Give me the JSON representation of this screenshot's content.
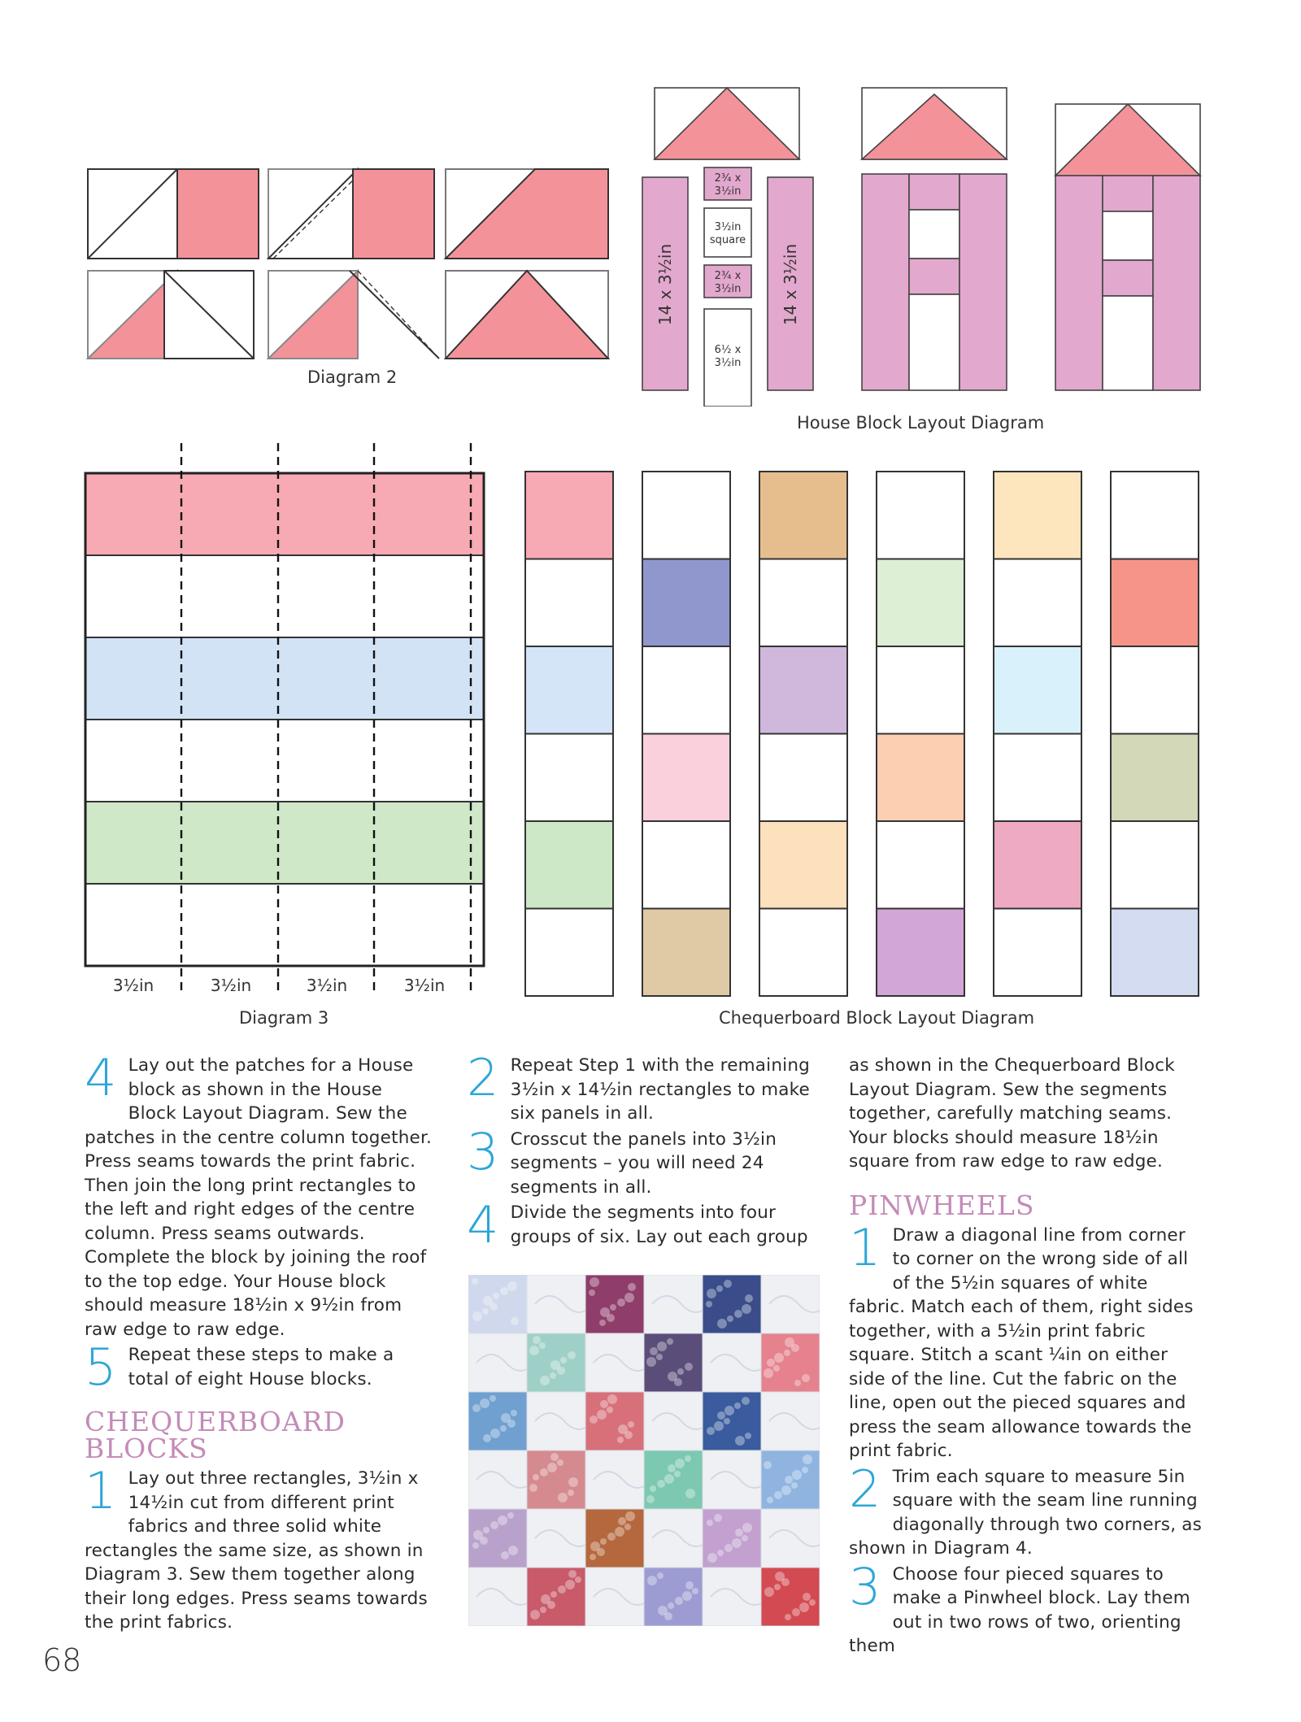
{
  "diagram2": {
    "caption": "Diagram 2"
  },
  "house_layout": {
    "caption": "House Block Layout Diagram",
    "labels": {
      "long_left": "14 x 3½in",
      "long_right": "14 x 3½in",
      "piece1_l1": "2¾ x",
      "piece1_l2": "3½in",
      "piece2_l1": "3½in",
      "piece2_l2": "square",
      "piece3_l1": "2¾ x",
      "piece3_l2": "3½in",
      "piece4_l1": "6½ x",
      "piece4_l2": "3½in"
    }
  },
  "diagram3": {
    "caption": "Diagram 3",
    "segment_labels": [
      "3½in",
      "3½in",
      "3½in",
      "3½in"
    ],
    "strip_colors": [
      "#f7aab4",
      "#ffffff",
      "#d3e3f6",
      "#ffffff",
      "#cfe8c8",
      "#ffffff"
    ]
  },
  "chequerboard": {
    "caption": "Chequerboard Block Layout Diagram",
    "columns": [
      [
        "#f7aab4",
        "#ffffff",
        "#d3e5f6",
        "#ffffff",
        "#cde8c6",
        "#ffffff"
      ],
      [
        "#ffffff",
        "#8f97cc",
        "#ffffff",
        "#fad0dc",
        "#ffffff",
        "#dfcaa5"
      ],
      [
        "#e6be8e",
        "#ffffff",
        "#cfb8dc",
        "#ffffff",
        "#fde0bc",
        "#ffffff"
      ],
      [
        "#ffffff",
        "#ddefd5",
        "#ffffff",
        "#fccfb2",
        "#ffffff",
        "#d2a6d6"
      ],
      [
        "#fde6bd",
        "#ffffff",
        "#d8f1fb",
        "#ffffff",
        "#eeaac2",
        "#ffffff"
      ],
      [
        "#ffffff",
        "#f69488",
        "#ffffff",
        "#d2d8b8",
        "#ffffff",
        "#d3dcf1"
      ]
    ]
  },
  "col1": {
    "step4_num": "4",
    "step4_text": "Lay out the patches for a House block as shown in the House Block Layout Diagram. Sew the patches in the centre column together. Press seams towards the print fabric. Then join the long print rectangles to the left and right edges of the centre column. Press seams outwards. Complete the block by joining the roof to the top edge. Your House block should measure 18½in x 9½in from raw edge to raw edge.",
    "step5_num": "5",
    "step5_text": "Repeat these steps to make a total of eight House blocks.",
    "heading_line1": "CHEQUERBOARD",
    "heading_line2": "BLOCKS",
    "step1_num": "1",
    "step1_text": "Lay out three rectangles, 3½in x 14½in cut from different print fabrics and three solid white rectangles the same size, as shown in Diagram 3. Sew them together along their long edges. Press seams towards the print fabrics."
  },
  "col2": {
    "step2_num": "2",
    "step2_text": "Repeat Step 1 with the remaining 3½in x 14½in rectangles to make six panels in all.",
    "step3_num": "3",
    "step3_text": "Crosscut the panels into 3½in segments – you will need 24 segments in all.",
    "step4_num": "4",
    "step4_text": "Divide the segments into four groups of six. Lay out each group"
  },
  "col3": {
    "cont_text": "as shown in the Chequerboard Block Layout Diagram. Sew the segments together, carefully matching seams. Your blocks should measure 18½in square from raw edge to raw edge.",
    "heading": "PINWHEELS",
    "step1_num": "1",
    "step1_text": "Draw a diagonal line from corner to corner on the wrong side of all of the 5½in squares of white fabric. Match each of them, right sides together, with a 5½in print fabric square. Stitch a scant ¼in on either side of the line. Cut the fabric on the line, open out the pieced squares and press the seam allowance towards the print fabric.",
    "step2_num": "2",
    "step2_text": "Trim each square to measure 5in square with the seam line running diagonally through two corners, as shown in Diagram 4.",
    "step3_num": "3",
    "step3_text": "Choose four pieced squares to make a Pinwheel block. Lay them out in two rows of two, orienting them"
  },
  "photo": {
    "colors": [
      [
        "#cfd8ec",
        "#eef0f4",
        "#8f3d6b",
        "#eef0f4",
        "#3a4d8a",
        "#eef0f4"
      ],
      [
        "#eef0f4",
        "#9fd0c8",
        "#eef0f4",
        "#5b4d7a",
        "#eef0f4",
        "#e5828e"
      ],
      [
        "#6fa0d0",
        "#eef0f4",
        "#d8707a",
        "#eef0f4",
        "#3a5c9e",
        "#eef0f4"
      ],
      [
        "#eef0f4",
        "#d58a8f",
        "#eef0f4",
        "#7cc8b0",
        "#eef0f4",
        "#8fb4e0"
      ],
      [
        "#b8a2cc",
        "#eef0f4",
        "#b5683d",
        "#eef0f4",
        "#c2a0cf",
        "#eef0f4"
      ],
      [
        "#eef0f4",
        "#c85a6a",
        "#eef0f4",
        "#9c9cd2",
        "#eef0f4",
        "#d34a52"
      ]
    ],
    "colors_dark": [
      "#5a6fa8",
      "#ffffff",
      "#3c1f45",
      "#ffffff",
      "#1a2658",
      "#ffffff"
    ]
  },
  "page_number": "68"
}
